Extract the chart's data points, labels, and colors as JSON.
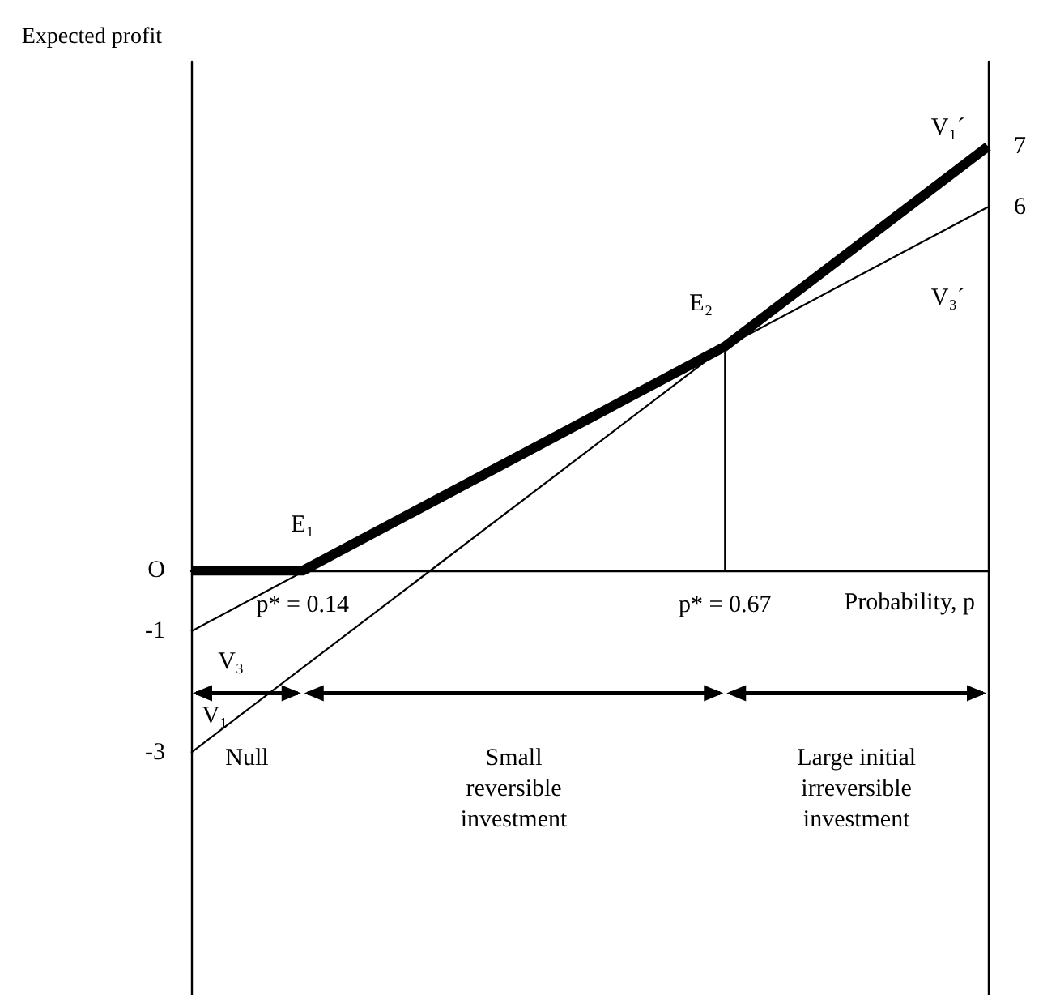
{
  "chart_data": {
    "type": "line",
    "ylabel": "Expected profit",
    "xlabel": "Probability, p",
    "xlim": [
      0,
      1
    ],
    "xticks": [
      {
        "value": 0.14,
        "label": "p* = 0.14"
      },
      {
        "value": 0.67,
        "label": "p* = 0.67"
      }
    ],
    "ylim": [
      -7,
      8.4
    ],
    "yticks": [
      {
        "value": 0,
        "label": "O"
      },
      -1,
      -3
    ],
    "y2lim": [
      -7,
      8.4
    ],
    "y2ticks": [
      6,
      7
    ],
    "grid": false,
    "marker": "none",
    "line_style": "solid",
    "series": [
      {
        "color": "#000000",
        "x": [
          0,
          0.14,
          0.67,
          1
        ],
        "values": [
          0,
          0,
          3.7,
          7
        ]
      },
      {
        "color": "#000000",
        "x": [
          0,
          1
        ],
        "values": [
          -3,
          7
        ]
      },
      {
        "color": "#000000",
        "x": [
          0,
          1
        ],
        "values": [
          -1,
          6
        ]
      },
      {
        "color": "#000000",
        "x": [
          0.67,
          0.67
        ],
        "values": [
          0,
          3.7
        ]
      }
    ],
    "annotations": [
      "E₁",
      "E₂",
      "V₁´",
      "V₃´",
      "V₃",
      "V₁",
      "Null",
      "Small\nreversible\ninvestment",
      "Large initial\nirreversible\ninvestment"
    ]
  }
}
